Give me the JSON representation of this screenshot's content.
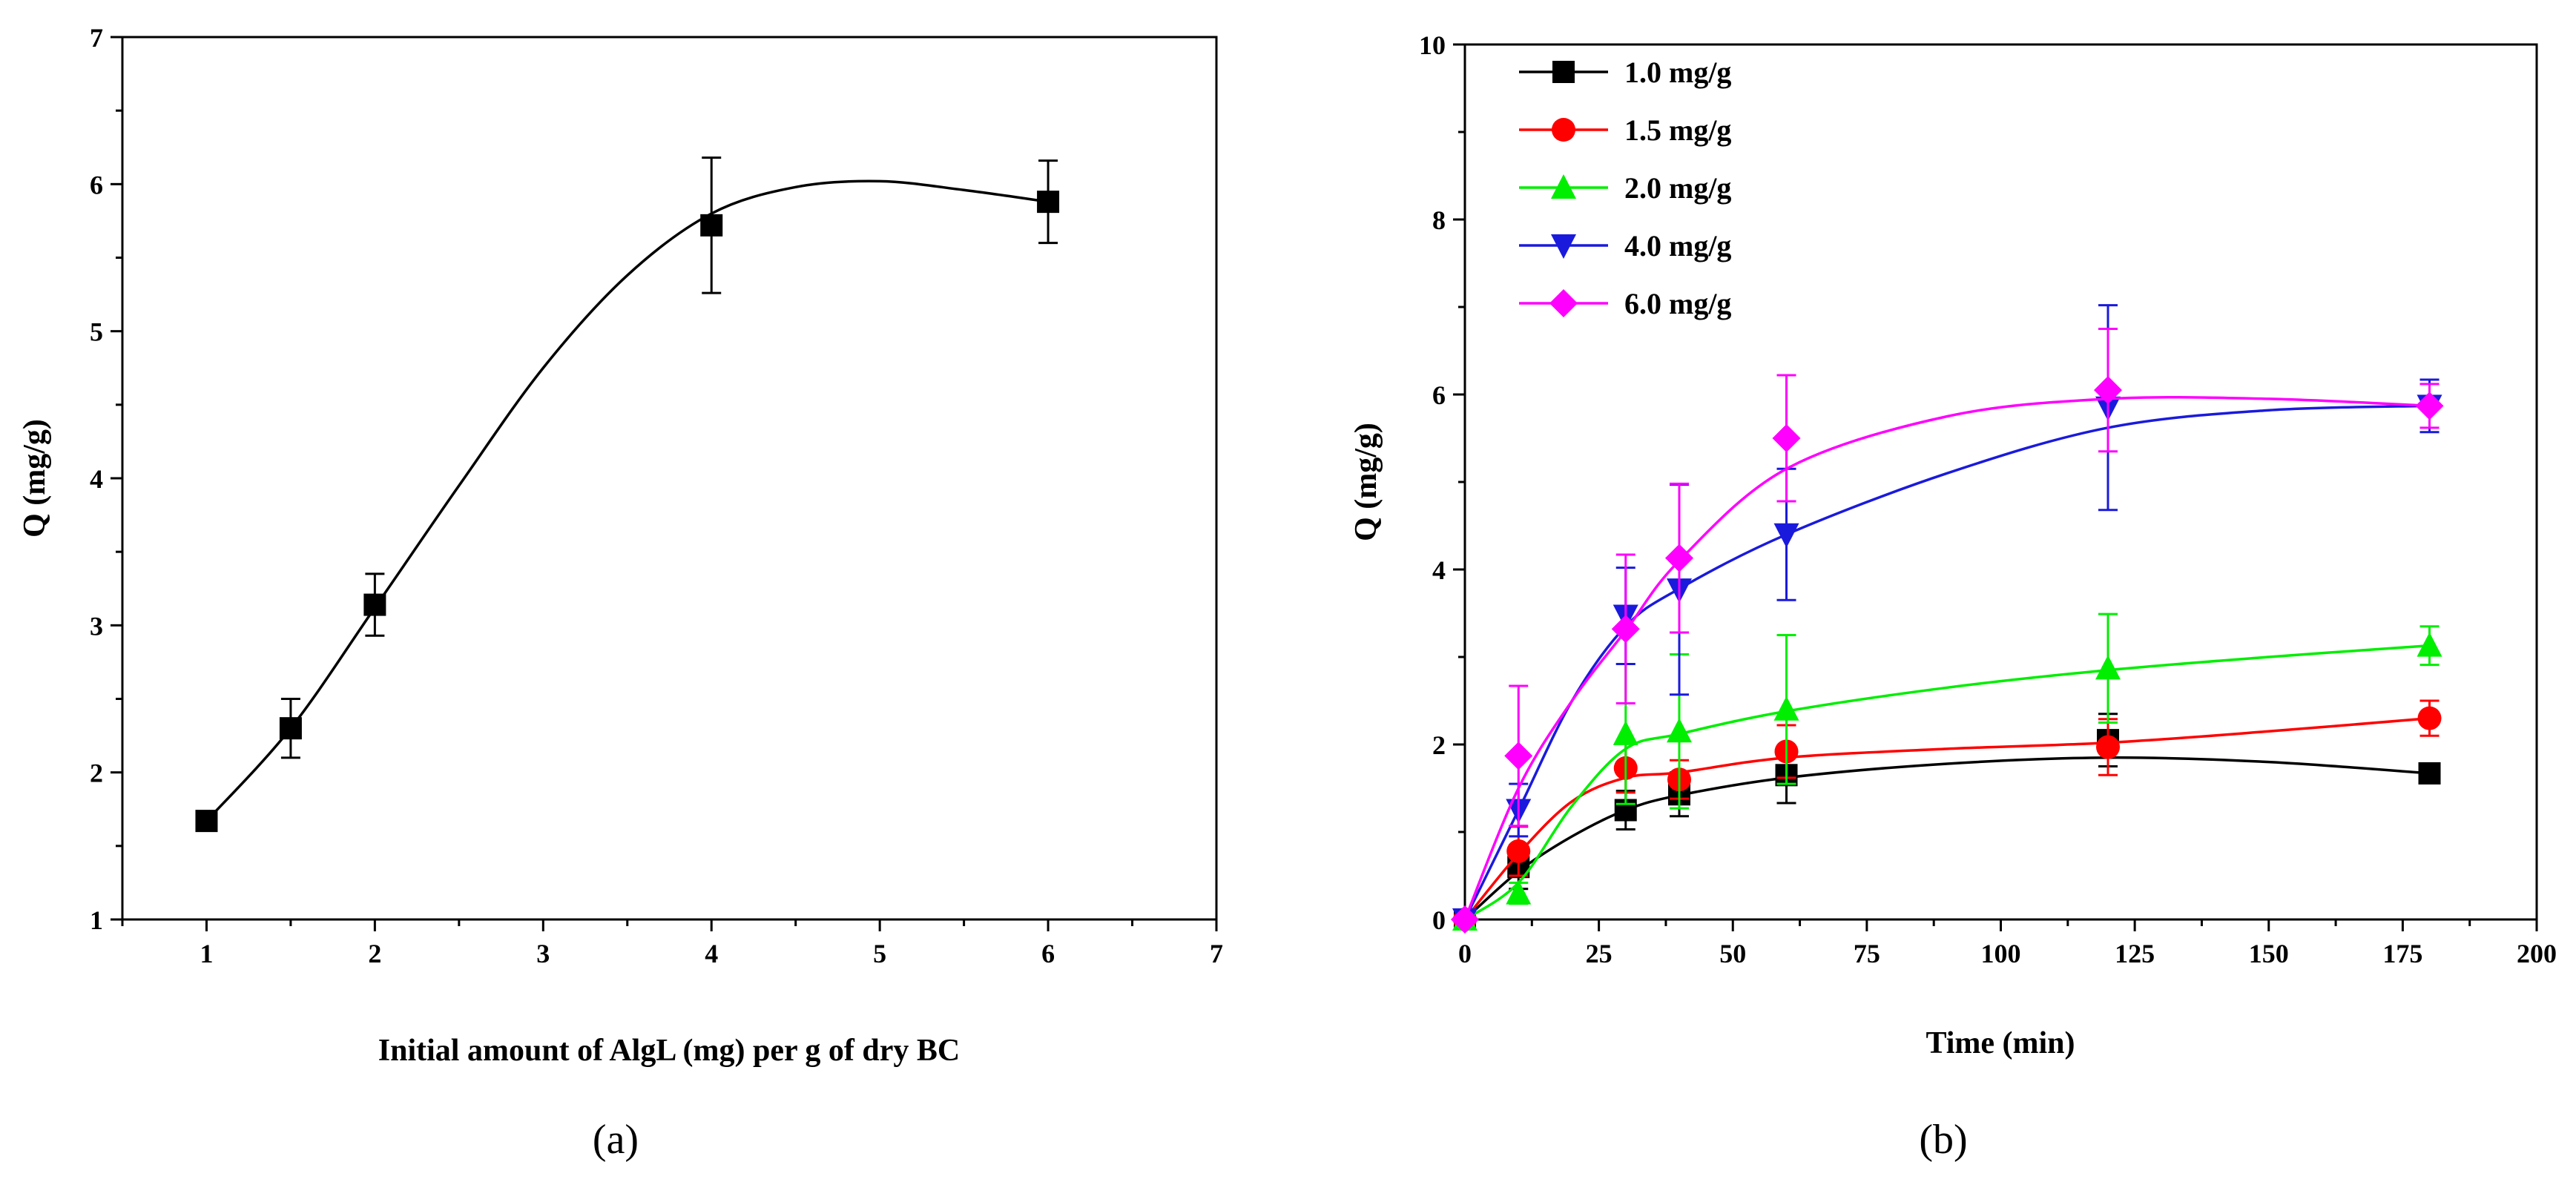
{
  "chart_data": [
    {
      "type": "line",
      "panel_label": "(a)",
      "xlabel": "Initial amount of AlgL (mg) per g of dry BC",
      "ylabel": "Q (mg/g)",
      "xlim": [
        0.5,
        7
      ],
      "ylim": [
        1,
        7
      ],
      "xticks": [
        1,
        2,
        3,
        4,
        5,
        6,
        7
      ],
      "yticks": [
        1,
        2,
        3,
        4,
        5,
        6,
        7
      ],
      "series": [
        {
          "name": "Q",
          "color": "#000000",
          "marker": "square",
          "x": [
            1,
            1.5,
            2,
            4,
            6
          ],
          "y": [
            1.67,
            2.3,
            3.14,
            5.72,
            5.88
          ],
          "err": [
            0.04,
            0.2,
            0.21,
            0.46,
            0.28
          ],
          "fit": [
            [
              1,
              1.67
            ],
            [
              1.5,
              2.3
            ],
            [
              2,
              3.12
            ],
            [
              2.5,
              3.95
            ],
            [
              3,
              4.75
            ],
            [
              3.5,
              5.38
            ],
            [
              4,
              5.8
            ],
            [
              4.5,
              5.98
            ],
            [
              5,
              6.02
            ],
            [
              5.5,
              5.96
            ],
            [
              6,
              5.88
            ]
          ]
        }
      ]
    },
    {
      "type": "line",
      "panel_label": "(b)",
      "xlabel": "Time (min)",
      "ylabel": "Q (mg/g)",
      "xlim": [
        0,
        200
      ],
      "ylim": [
        0,
        10
      ],
      "xticks": [
        0,
        25,
        50,
        75,
        100,
        125,
        150,
        175,
        200
      ],
      "yticks": [
        0,
        2,
        4,
        6,
        8,
        10
      ],
      "legend_position": "top-left",
      "series": [
        {
          "name": "1.0 mg/g",
          "color": "#000000",
          "marker": "square",
          "x": [
            0,
            10,
            30,
            40,
            60,
            120,
            180
          ],
          "y": [
            0,
            0.6,
            1.25,
            1.43,
            1.65,
            2.05,
            1.67
          ],
          "err": [
            0,
            0.25,
            0.22,
            0.25,
            0.32,
            0.3,
            0.05
          ],
          "fit": [
            [
              0,
              0
            ],
            [
              10,
              0.55
            ],
            [
              20,
              0.95
            ],
            [
              30,
              1.25
            ],
            [
              40,
              1.42
            ],
            [
              60,
              1.62
            ],
            [
              90,
              1.78
            ],
            [
              120,
              1.85
            ],
            [
              150,
              1.8
            ],
            [
              180,
              1.67
            ]
          ]
        },
        {
          "name": "1.5 mg/g",
          "color": "#ff0000",
          "marker": "circle",
          "x": [
            0,
            10,
            30,
            40,
            60,
            120,
            180
          ],
          "y": [
            0,
            0.78,
            1.73,
            1.6,
            1.92,
            1.97,
            2.3
          ],
          "err": [
            0,
            0.28,
            0.28,
            0.22,
            0.3,
            0.32,
            0.2
          ],
          "fit": [
            [
              0,
              0
            ],
            [
              10,
              0.75
            ],
            [
              20,
              1.35
            ],
            [
              30,
              1.62
            ],
            [
              40,
              1.68
            ],
            [
              60,
              1.85
            ],
            [
              90,
              1.95
            ],
            [
              120,
              2.02
            ],
            [
              150,
              2.15
            ],
            [
              180,
              2.3
            ]
          ]
        },
        {
          "name": "2.0 mg/g",
          "color": "#00ee00",
          "marker": "triangle-up",
          "x": [
            0,
            10,
            30,
            40,
            60,
            120,
            180
          ],
          "y": [
            0,
            0.3,
            2.12,
            2.15,
            2.4,
            2.87,
            3.13
          ],
          "err": [
            0,
            0.12,
            0.8,
            0.88,
            0.85,
            0.62,
            0.22
          ],
          "fit": [
            [
              0,
              0
            ],
            [
              10,
              0.42
            ],
            [
              20,
              1.3
            ],
            [
              30,
              1.95
            ],
            [
              40,
              2.12
            ],
            [
              60,
              2.38
            ],
            [
              90,
              2.65
            ],
            [
              120,
              2.85
            ],
            [
              150,
              3.0
            ],
            [
              180,
              3.13
            ]
          ]
        },
        {
          "name": "4.0 mg/g",
          "color": "#1a1adc",
          "marker": "triangle-down",
          "x": [
            0,
            10,
            30,
            40,
            60,
            120,
            180
          ],
          "y": [
            0,
            1.25,
            3.47,
            3.77,
            4.4,
            5.85,
            5.87
          ],
          "err": [
            0,
            0.3,
            0.55,
            1.2,
            0.75,
            1.17,
            0.3
          ],
          "fit": [
            [
              0,
              0
            ],
            [
              10,
              1.25
            ],
            [
              20,
              2.5
            ],
            [
              30,
              3.35
            ],
            [
              40,
              3.78
            ],
            [
              60,
              4.4
            ],
            [
              90,
              5.1
            ],
            [
              120,
              5.62
            ],
            [
              150,
              5.82
            ],
            [
              180,
              5.87
            ]
          ]
        },
        {
          "name": "6.0 mg/g",
          "color": "#ff00ff",
          "marker": "diamond",
          "x": [
            0,
            10,
            30,
            40,
            60,
            120,
            180
          ],
          "y": [
            0,
            1.87,
            3.32,
            4.13,
            5.5,
            6.05,
            5.87
          ],
          "err": [
            0,
            0.8,
            0.85,
            0.85,
            0.72,
            0.7,
            0.25
          ],
          "fit": [
            [
              0,
              0
            ],
            [
              10,
              1.5
            ],
            [
              20,
              2.5
            ],
            [
              30,
              3.3
            ],
            [
              40,
              4.1
            ],
            [
              60,
              5.15
            ],
            [
              90,
              5.75
            ],
            [
              120,
              5.95
            ],
            [
              150,
              5.95
            ],
            [
              180,
              5.87
            ]
          ]
        }
      ]
    }
  ]
}
